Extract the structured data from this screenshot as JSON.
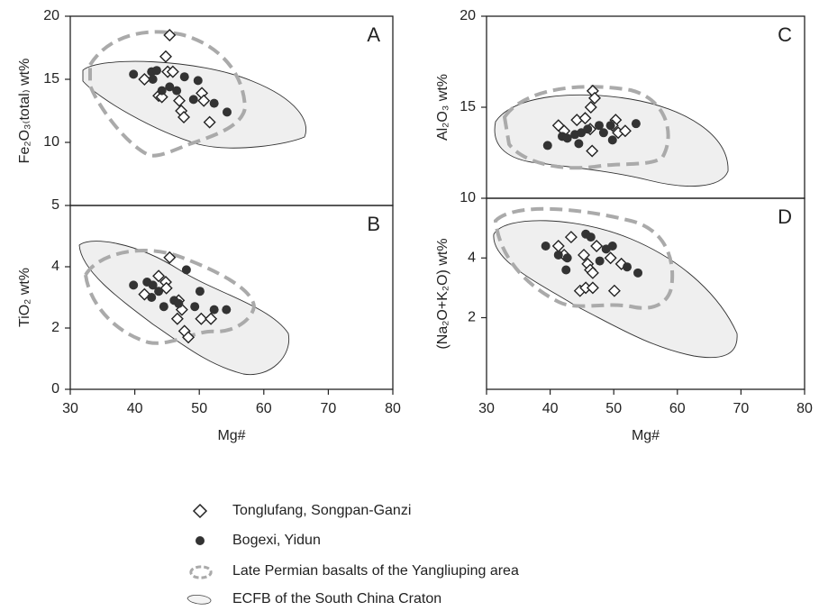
{
  "legend": [
    "Tonglufang, Songpan-Ganzi",
    "Bogexi, Yidun",
    "Late Permian basalts of the Yangliuping area",
    "ECFB of the South China Craton"
  ],
  "chart_data": [
    {
      "type": "scatter",
      "label": "A",
      "ylabel": "Fe₂O₃₍total₎ wt%",
      "xlim": [
        30,
        80
      ],
      "ylim": [
        5,
        20
      ],
      "yticks": [
        5,
        10,
        15,
        20
      ],
      "series": [
        {
          "marker": "diamond",
          "color": "#ffffff",
          "x": [
            45.4,
            44.8,
            45.1,
            45.9,
            41.5,
            43.7,
            44.2,
            46.9,
            47.2,
            47.6,
            50.4,
            50.7,
            51.6
          ],
          "values": [
            18.5,
            16.8,
            15.6,
            15.6,
            15.0,
            13.7,
            13.6,
            13.3,
            12.5,
            12.0,
            13.9,
            13.3,
            11.6
          ]
        },
        {
          "marker": "circle",
          "color": "#333333",
          "x": [
            39.8,
            42.6,
            43.4,
            42.8,
            45.4,
            46.5,
            47.7,
            49.8,
            49.1,
            52.3,
            54.3,
            44.2
          ],
          "values": [
            15.4,
            15.6,
            15.7,
            15.0,
            14.4,
            14.1,
            15.2,
            14.9,
            13.4,
            13.1,
            12.4,
            14.1
          ]
        }
      ]
    },
    {
      "type": "scatter",
      "label": "B",
      "ylabel": "TiO₂ wt%",
      "xlabel": "Mg#",
      "xlim": [
        30,
        80
      ],
      "xticks": [
        30,
        40,
        50,
        60,
        70,
        80
      ],
      "ylim": [
        0,
        6
      ],
      "yticks": [
        0,
        2,
        4
      ],
      "series": [
        {
          "marker": "diamond",
          "color": "#ffffff",
          "x": [
            45.4,
            43.7,
            44.8,
            44.9,
            41.5,
            46.8,
            47.3,
            46.6,
            47.7,
            48.3,
            50.3,
            51.8
          ],
          "values": [
            4.3,
            3.7,
            3.5,
            3.3,
            3.1,
            2.9,
            2.6,
            2.3,
            1.9,
            1.7,
            2.3,
            2.3
          ]
        },
        {
          "marker": "circle",
          "color": "#333333",
          "x": [
            39.8,
            41.9,
            42.8,
            43.7,
            42.6,
            44.5,
            46.1,
            46.8,
            48.0,
            50.1,
            49.3,
            52.3,
            54.2
          ],
          "values": [
            3.4,
            3.5,
            3.4,
            3.2,
            3.0,
            2.7,
            2.9,
            2.8,
            3.9,
            3.2,
            2.7,
            2.6,
            2.6
          ]
        }
      ]
    },
    {
      "type": "scatter",
      "label": "C",
      "ylabel": "Al₂O₃ wt%",
      "xlim": [
        30,
        80
      ],
      "ylim": [
        10,
        20
      ],
      "yticks": [
        10,
        15,
        20
      ],
      "series": [
        {
          "marker": "diamond",
          "color": "#ffffff",
          "x": [
            46.7,
            47.0,
            46.4,
            44.2,
            45.5,
            41.3,
            42.2,
            46.3,
            46.6,
            50.3,
            49.8,
            50.7,
            51.8
          ],
          "values": [
            15.9,
            15.5,
            15.0,
            14.3,
            14.4,
            14.0,
            13.7,
            13.8,
            12.6,
            14.3,
            14.0,
            13.6,
            13.7
          ]
        },
        {
          "marker": "circle",
          "color": "#333333",
          "x": [
            39.6,
            41.9,
            42.7,
            43.9,
            44.9,
            44.5,
            45.9,
            47.7,
            48.4,
            49.5,
            49.8,
            53.5
          ],
          "values": [
            12.9,
            13.4,
            13.3,
            13.5,
            13.6,
            13.0,
            13.8,
            14.0,
            13.6,
            14.0,
            13.2,
            14.1
          ]
        }
      ]
    },
    {
      "type": "scatter",
      "label": "D",
      "ylabel": "(Na₂O+K₂O) wt%",
      "xlabel": "Mg#",
      "xlim": [
        30,
        80
      ],
      "xticks": [
        30,
        40,
        50,
        60,
        70,
        80
      ],
      "ylim": [
        -0.4,
        6
      ],
      "yticks": [
        2,
        4
      ],
      "series": [
        {
          "marker": "diamond",
          "color": "#ffffff",
          "x": [
            43.3,
            41.3,
            42.2,
            45.3,
            45.9,
            46.3,
            46.7,
            47.3,
            44.7,
            45.6,
            46.7,
            49.5,
            51.2,
            50.1
          ],
          "values": [
            4.7,
            4.4,
            4.1,
            4.1,
            3.8,
            3.6,
            3.5,
            4.4,
            2.9,
            3.0,
            3.0,
            4.0,
            3.8,
            2.9
          ]
        },
        {
          "marker": "circle",
          "color": "#333333",
          "x": [
            39.3,
            41.3,
            42.7,
            42.5,
            45.6,
            46.4,
            47.8,
            48.8,
            49.8,
            52.1,
            53.8
          ],
          "values": [
            4.4,
            4.1,
            4.0,
            3.6,
            4.8,
            4.7,
            3.9,
            4.3,
            4.4,
            3.7,
            3.5
          ]
        }
      ]
    }
  ]
}
